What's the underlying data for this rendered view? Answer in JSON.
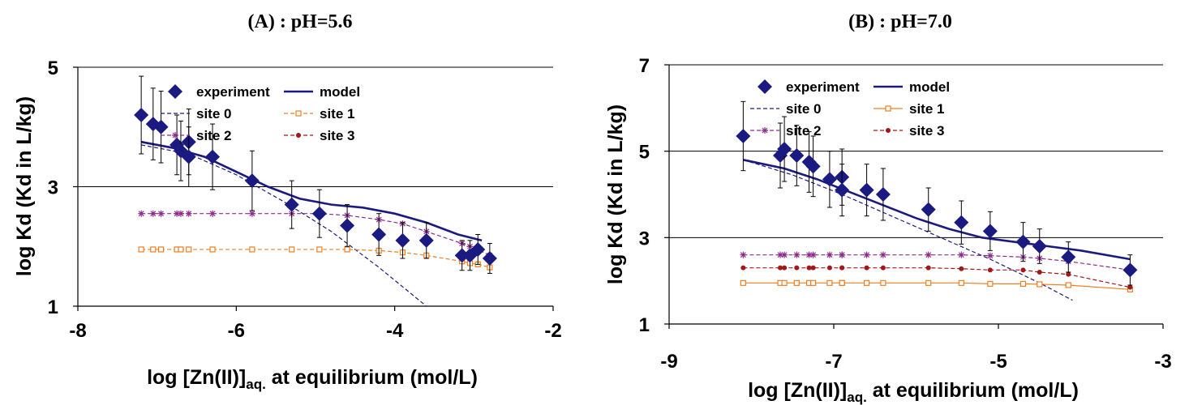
{
  "chart_data": [
    {
      "type": "scatter",
      "title": "(A) : pH=5.6",
      "xlabel": "log [Zn(II)]aq. at equilibrium (mol/L)",
      "xlabel_main": "log [Zn(II)]",
      "xlabel_sub": "aq.",
      "xlabel_rest": " at equilibrium (mol/L)",
      "ylabel": "log Kd (Kd in L/kg)",
      "xlim": [
        -8,
        -2
      ],
      "ylim": [
        1,
        5
      ],
      "xticks": [
        -8,
        -6,
        -4,
        -2
      ],
      "yticks": [
        1,
        3,
        5
      ],
      "gridlines_y": [
        3,
        5
      ],
      "legend_position": "top-right",
      "series": [
        {
          "name": "experiment",
          "kind": "points",
          "color": "#1a1a80",
          "x": [
            -7.2,
            -7.05,
            -6.95,
            -6.75,
            -6.7,
            -6.6,
            -6.6,
            -6.3,
            -5.8,
            -5.3,
            -4.95,
            -4.6,
            -4.2,
            -3.9,
            -3.6,
            -3.15,
            -3.05,
            -2.95,
            -2.8
          ],
          "y": [
            4.2,
            4.05,
            4.0,
            3.7,
            3.6,
            3.75,
            3.5,
            3.5,
            3.1,
            2.7,
            2.55,
            2.35,
            2.2,
            2.1,
            2.1,
            1.85,
            1.85,
            1.95,
            1.8
          ],
          "err": [
            0.65,
            0.6,
            0.6,
            0.5,
            0.5,
            0.55,
            0.5,
            0.55,
            0.5,
            0.4,
            0.4,
            0.35,
            0.35,
            0.3,
            0.3,
            0.25,
            0.25,
            0.25,
            0.25
          ]
        },
        {
          "name": "model",
          "kind": "line",
          "color": "#1a1a80",
          "x": [
            -7.2,
            -6.8,
            -6.4,
            -6.0,
            -5.6,
            -5.2,
            -4.8,
            -4.4,
            -4.0,
            -3.6,
            -3.2,
            -2.9
          ],
          "y": [
            3.75,
            3.65,
            3.5,
            3.25,
            3.0,
            2.8,
            2.7,
            2.65,
            2.55,
            2.4,
            2.2,
            2.1
          ]
        },
        {
          "name": "site 0",
          "kind": "dashed",
          "color": "#1a1a80",
          "x": [
            -7.2,
            -6.6,
            -6.0,
            -5.4,
            -4.8,
            -4.2,
            -3.6,
            -3.55
          ],
          "y": [
            3.7,
            3.55,
            3.2,
            2.75,
            2.25,
            1.65,
            1.0,
            0.95
          ]
        },
        {
          "name": "site 1",
          "kind": "dashed-square",
          "color": "#f07f20",
          "x": [
            -7.2,
            -7.05,
            -6.95,
            -6.75,
            -6.7,
            -6.6,
            -6.3,
            -5.8,
            -5.3,
            -4.95,
            -4.6,
            -4.2,
            -3.9,
            -3.6,
            -3.15,
            -3.05,
            -2.95,
            -2.8
          ],
          "y": [
            1.95,
            1.95,
            1.95,
            1.95,
            1.95,
            1.95,
            1.95,
            1.95,
            1.95,
            1.95,
            1.95,
            1.93,
            1.9,
            1.85,
            1.75,
            1.72,
            1.7,
            1.65
          ]
        },
        {
          "name": "site 2",
          "kind": "dashed-star",
          "color": "#8e2b8e",
          "x": [
            -7.2,
            -7.05,
            -6.95,
            -6.75,
            -6.7,
            -6.6,
            -6.3,
            -5.8,
            -5.3,
            -4.95,
            -4.6,
            -4.2,
            -3.9,
            -3.6,
            -3.15,
            -3.05,
            -2.95,
            -2.8
          ],
          "y": [
            2.55,
            2.55,
            2.55,
            2.55,
            2.55,
            2.55,
            2.55,
            2.55,
            2.55,
            2.55,
            2.52,
            2.45,
            2.38,
            2.25,
            2.05,
            2.0,
            1.95,
            1.85
          ]
        }
      ]
    },
    {
      "type": "scatter",
      "title": "(B) : pH=7.0",
      "xlabel": "log [Zn(II)]aq. at equilibrium (mol/L)",
      "xlabel_main": "log [Zn(II)]",
      "xlabel_sub": "aq.",
      "xlabel_rest": " at equilibrium (mol/L)",
      "ylabel": "log Kd (Kd in L/kg)",
      "xlim": [
        -9,
        -3
      ],
      "ylim": [
        1,
        7
      ],
      "xticks": [
        -9,
        -7,
        -5,
        -3
      ],
      "yticks": [
        1,
        3,
        5,
        7
      ],
      "gridlines_y": [
        3,
        5,
        7
      ],
      "legend_position": "top-right",
      "series": [
        {
          "name": "experiment",
          "kind": "points",
          "color": "#1a1a80",
          "x": [
            -8.1,
            -7.65,
            -7.6,
            -7.45,
            -7.3,
            -7.25,
            -7.05,
            -6.9,
            -6.9,
            -6.6,
            -6.4,
            -5.85,
            -5.45,
            -5.1,
            -4.7,
            -4.5,
            -4.15,
            -3.4
          ],
          "y": [
            5.35,
            4.9,
            5.05,
            4.9,
            4.75,
            4.65,
            4.35,
            4.4,
            4.1,
            4.1,
            4.0,
            3.65,
            3.35,
            3.15,
            2.9,
            2.8,
            2.55,
            2.25
          ],
          "err": [
            0.8,
            0.75,
            0.75,
            0.7,
            0.7,
            0.7,
            0.65,
            0.65,
            0.6,
            0.6,
            0.6,
            0.5,
            0.5,
            0.45,
            0.45,
            0.4,
            0.35,
            0.35
          ]
        },
        {
          "name": "model",
          "kind": "line",
          "color": "#1a1a80",
          "x": [
            -8.1,
            -7.6,
            -7.2,
            -6.8,
            -6.4,
            -6.0,
            -5.6,
            -5.2,
            -4.8,
            -4.4,
            -4.0,
            -3.4
          ],
          "y": [
            4.8,
            4.6,
            4.35,
            4.05,
            3.75,
            3.45,
            3.2,
            3.0,
            2.9,
            2.8,
            2.7,
            2.5
          ]
        },
        {
          "name": "site 0",
          "kind": "dashed",
          "color": "#1a1a80",
          "x": [
            -8.1,
            -7.5,
            -6.9,
            -6.3,
            -5.7,
            -5.1,
            -4.5,
            -4.1
          ],
          "y": [
            4.8,
            4.45,
            4.0,
            3.5,
            3.0,
            2.5,
            1.95,
            1.55
          ]
        },
        {
          "name": "site 1",
          "kind": "solid-square",
          "color": "#f07f20",
          "x": [
            -8.1,
            -7.65,
            -7.6,
            -7.45,
            -7.3,
            -7.25,
            -7.05,
            -6.9,
            -6.9,
            -6.6,
            -6.4,
            -5.85,
            -5.45,
            -5.1,
            -4.7,
            -4.5,
            -4.15,
            -3.4
          ],
          "y": [
            1.95,
            1.95,
            1.95,
            1.95,
            1.95,
            1.95,
            1.95,
            1.95,
            1.95,
            1.95,
            1.95,
            1.95,
            1.95,
            1.93,
            1.93,
            1.92,
            1.9,
            1.8
          ]
        },
        {
          "name": "site 2",
          "kind": "dashed-star",
          "color": "#8e2b8e",
          "x": [
            -8.1,
            -7.65,
            -7.6,
            -7.45,
            -7.3,
            -7.25,
            -7.05,
            -6.9,
            -6.9,
            -6.6,
            -6.4,
            -5.85,
            -5.45,
            -5.1,
            -4.7,
            -4.5,
            -4.15,
            -3.4
          ],
          "y": [
            2.6,
            2.6,
            2.6,
            2.6,
            2.6,
            2.6,
            2.6,
            2.6,
            2.6,
            2.6,
            2.6,
            2.6,
            2.6,
            2.58,
            2.55,
            2.52,
            2.45,
            2.25
          ]
        },
        {
          "name": "site 3",
          "kind": "dashed-dot",
          "color": "#a01818",
          "x": [
            -8.1,
            -7.65,
            -7.6,
            -7.45,
            -7.3,
            -7.25,
            -7.05,
            -6.9,
            -6.9,
            -6.6,
            -6.4,
            -5.85,
            -5.45,
            -5.1,
            -4.7,
            -4.5,
            -4.15,
            -3.4
          ],
          "y": [
            2.3,
            2.3,
            2.3,
            2.3,
            2.3,
            2.3,
            2.3,
            2.3,
            2.3,
            2.3,
            2.3,
            2.3,
            2.28,
            2.25,
            2.25,
            2.2,
            2.15,
            1.85
          ]
        }
      ]
    }
  ],
  "legends": [
    {
      "experiment": "experiment",
      "model": "model",
      "site0": "site 0",
      "site1": "site 1",
      "site2": "site 2",
      "site3": "site 3"
    },
    {
      "experiment": "experiment",
      "model": "model",
      "site0": "site 0",
      "site1": "site 1",
      "site2": "site 2",
      "site3": "site 3"
    }
  ]
}
